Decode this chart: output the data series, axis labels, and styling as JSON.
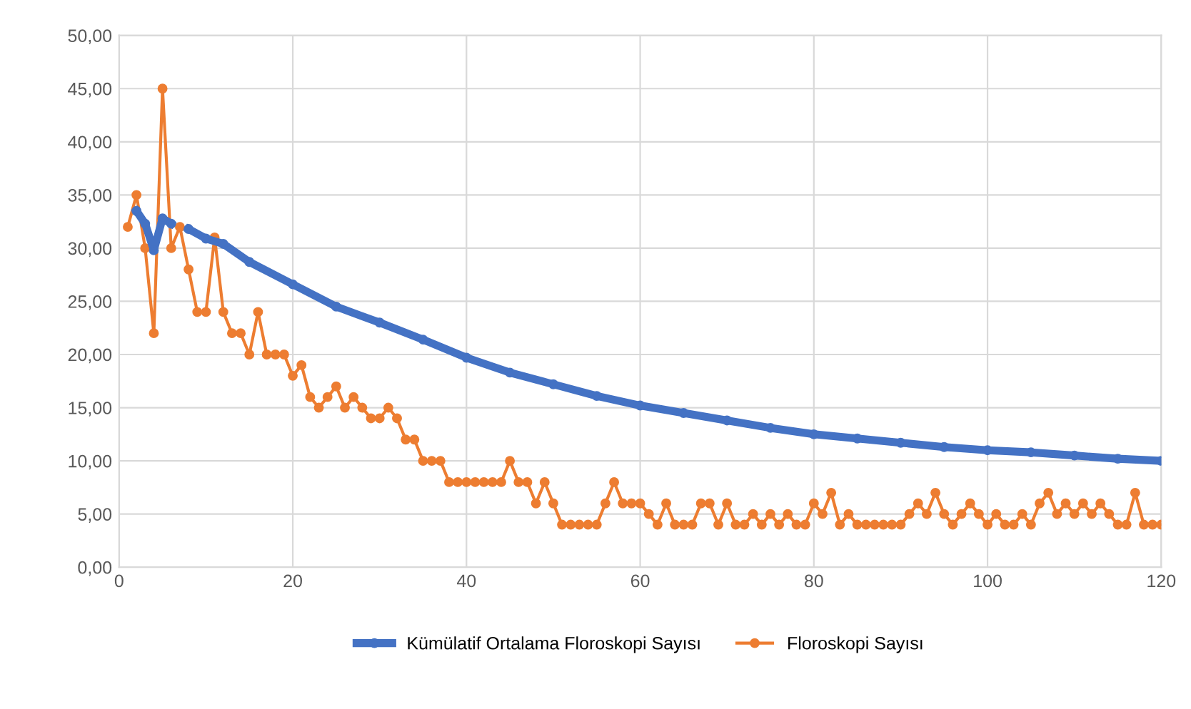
{
  "chart_data": {
    "type": "line",
    "series": [
      {
        "name": "Kümülatif Ortalama Floroskopi Sayısı",
        "color": "#4472c4",
        "x": [
          2,
          3,
          4,
          5,
          6,
          7,
          8,
          10,
          12,
          15,
          20,
          25,
          30,
          35,
          40,
          45,
          50,
          55,
          60,
          65,
          70,
          75,
          80,
          85,
          90,
          95,
          100,
          105,
          110,
          115,
          120
        ],
        "values": [
          33.5,
          32.3,
          29.8,
          32.8,
          32.3,
          null,
          31.8,
          30.9,
          30.4,
          28.7,
          26.6,
          24.5,
          23,
          21.4,
          19.7,
          18.3,
          17.2,
          16.1,
          15.2,
          14.5,
          13.8,
          13.1,
          12.5,
          12.1,
          11.7,
          11.3,
          11,
          10.8,
          10.5,
          10.2,
          10
        ]
      },
      {
        "name": "Floroskopi Sayısı",
        "color": "#ed7d31",
        "x": [
          1,
          2,
          3,
          4,
          5,
          6,
          7,
          8,
          9,
          10,
          11,
          12,
          13,
          14,
          15,
          16,
          17,
          18,
          19,
          20,
          21,
          22,
          23,
          24,
          25,
          26,
          27,
          28,
          29,
          30,
          31,
          32,
          33,
          34,
          35,
          36,
          37,
          38,
          39,
          40,
          41,
          42,
          43,
          44,
          45,
          46,
          47,
          48,
          49,
          50,
          51,
          52,
          53,
          54,
          55,
          56,
          57,
          58,
          59,
          60,
          61,
          62,
          63,
          64,
          65,
          66,
          67,
          68,
          69,
          70,
          71,
          72,
          73,
          74,
          75,
          76,
          77,
          78,
          79,
          80,
          81,
          82,
          83,
          84,
          85,
          86,
          87,
          88,
          89,
          90,
          91,
          92,
          93,
          94,
          95,
          96,
          97,
          98,
          99,
          100,
          101,
          102,
          103,
          104,
          105,
          106,
          107,
          108,
          109,
          110,
          111,
          112,
          113,
          114,
          115,
          116,
          117,
          118,
          119,
          120
        ],
        "values": [
          32,
          35,
          30,
          22,
          45,
          30,
          32,
          28,
          24,
          24,
          31,
          24,
          22,
          22,
          20,
          24,
          20,
          20,
          20,
          18,
          19,
          16,
          15,
          16,
          17,
          15,
          16,
          15,
          14,
          14,
          15,
          14,
          12,
          12,
          10,
          10,
          10,
          8,
          8,
          8,
          8,
          8,
          8,
          8,
          10,
          8,
          8,
          6,
          8,
          6,
          4,
          4,
          4,
          4,
          4,
          6,
          8,
          6,
          6,
          6,
          5,
          4,
          6,
          4,
          4,
          4,
          6,
          6,
          4,
          6,
          4,
          4,
          5,
          4,
          5,
          4,
          5,
          4,
          4,
          6,
          5,
          7,
          4,
          5,
          4,
          4,
          4,
          4,
          4,
          4,
          5,
          6,
          5,
          7,
          5,
          4,
          5,
          6,
          5,
          4,
          5,
          4,
          4,
          5,
          4,
          6,
          7,
          5,
          6,
          5,
          6,
          5,
          6,
          5,
          4,
          4,
          7,
          4,
          4,
          4
        ]
      }
    ],
    "xlim": [
      0,
      120
    ],
    "xticks": [
      0,
      20,
      40,
      60,
      80,
      100,
      120
    ],
    "ylim": [
      0,
      50
    ],
    "yticks": [
      {
        "value": 0,
        "label": "0,00"
      },
      {
        "value": 5,
        "label": "5,00"
      },
      {
        "value": 10,
        "label": "10,00"
      },
      {
        "value": 15,
        "label": "15,00"
      },
      {
        "value": 20,
        "label": "20,00"
      },
      {
        "value": 25,
        "label": "25,00"
      },
      {
        "value": 30,
        "label": "30,00"
      },
      {
        "value": 35,
        "label": "35,00"
      },
      {
        "value": 40,
        "label": "40,00"
      },
      {
        "value": 45,
        "label": "45,00"
      },
      {
        "value": 50,
        "label": "50,00"
      }
    ],
    "grid": true,
    "legend": "bottom",
    "marker": "circle",
    "line_style": "solid"
  }
}
